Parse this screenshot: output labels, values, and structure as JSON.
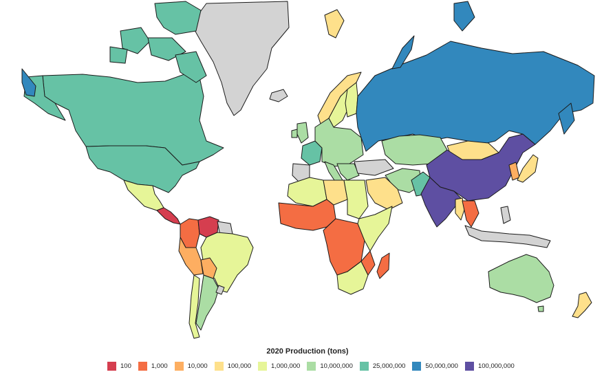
{
  "legend": {
    "title": "2020 Production (tons)",
    "bins": [
      {
        "label": "100",
        "color": "#d53e4f"
      },
      {
        "label": "1,000",
        "color": "#f46d43"
      },
      {
        "label": "10,000",
        "color": "#fdae61"
      },
      {
        "label": "100,000",
        "color": "#fee08b"
      },
      {
        "label": "1,000,000",
        "color": "#e6f598"
      },
      {
        "label": "10,000,000",
        "color": "#abdda4"
      },
      {
        "label": "25,000,000",
        "color": "#66c2a5"
      },
      {
        "label": "50,000,000",
        "color": "#3288bd"
      },
      {
        "label": "100,000,000",
        "color": "#5e4fa2"
      }
    ]
  },
  "no_data_color": "#d3d3d3",
  "countries": [
    {
      "name": "Canada",
      "bin": "25,000,000"
    },
    {
      "name": "United States",
      "bin": "25,000,000"
    },
    {
      "name": "Mexico",
      "bin": "1,000,000"
    },
    {
      "name": "Central America",
      "bin": "100"
    },
    {
      "name": "Colombia",
      "bin": "1,000"
    },
    {
      "name": "Venezuela",
      "bin": "100"
    },
    {
      "name": "Peru",
      "bin": "10,000"
    },
    {
      "name": "Brazil",
      "bin": "1,000,000"
    },
    {
      "name": "Bolivia",
      "bin": "10,000"
    },
    {
      "name": "Argentina",
      "bin": "10,000,000"
    },
    {
      "name": "Chile",
      "bin": "1,000,000"
    },
    {
      "name": "Greenland",
      "bin": "no data"
    },
    {
      "name": "Iceland",
      "bin": "no data"
    },
    {
      "name": "Norway",
      "bin": "100,000"
    },
    {
      "name": "Sweden",
      "bin": "1,000,000"
    },
    {
      "name": "Finland",
      "bin": "1,000,000"
    },
    {
      "name": "France",
      "bin": "25,000,000"
    },
    {
      "name": "Europe",
      "bin": "10,000,000"
    },
    {
      "name": "Russia",
      "bin": "50,000,000"
    },
    {
      "name": "Kazakhstan",
      "bin": "10,000,000"
    },
    {
      "name": "Mongolia",
      "bin": "100,000"
    },
    {
      "name": "China",
      "bin": "100,000,000"
    },
    {
      "name": "India",
      "bin": "100,000,000"
    },
    {
      "name": "Pakistan",
      "bin": "25,000,000"
    },
    {
      "name": "Iran",
      "bin": "10,000,000"
    },
    {
      "name": "Saudi Arabia",
      "bin": "100,000"
    },
    {
      "name": "Algeria",
      "bin": "1,000,000"
    },
    {
      "name": "Libya",
      "bin": "100,000"
    },
    {
      "name": "Egypt",
      "bin": "1,000,000"
    },
    {
      "name": "West Africa",
      "bin": "1,000"
    },
    {
      "name": "Central Africa",
      "bin": "1,000"
    },
    {
      "name": "East Africa",
      "bin": "1,000,000"
    },
    {
      "name": "South Africa",
      "bin": "1,000,000"
    },
    {
      "name": "Madagascar",
      "bin": "1,000"
    },
    {
      "name": "Myanmar",
      "bin": "100,000"
    },
    {
      "name": "Thailand",
      "bin": "1,000"
    },
    {
      "name": "Japan",
      "bin": "100,000"
    },
    {
      "name": "Korea",
      "bin": "10,000"
    },
    {
      "name": "Indonesia",
      "bin": "no data"
    },
    {
      "name": "Australia",
      "bin": "10,000,000"
    },
    {
      "name": "New Zealand",
      "bin": "100,000"
    }
  ]
}
